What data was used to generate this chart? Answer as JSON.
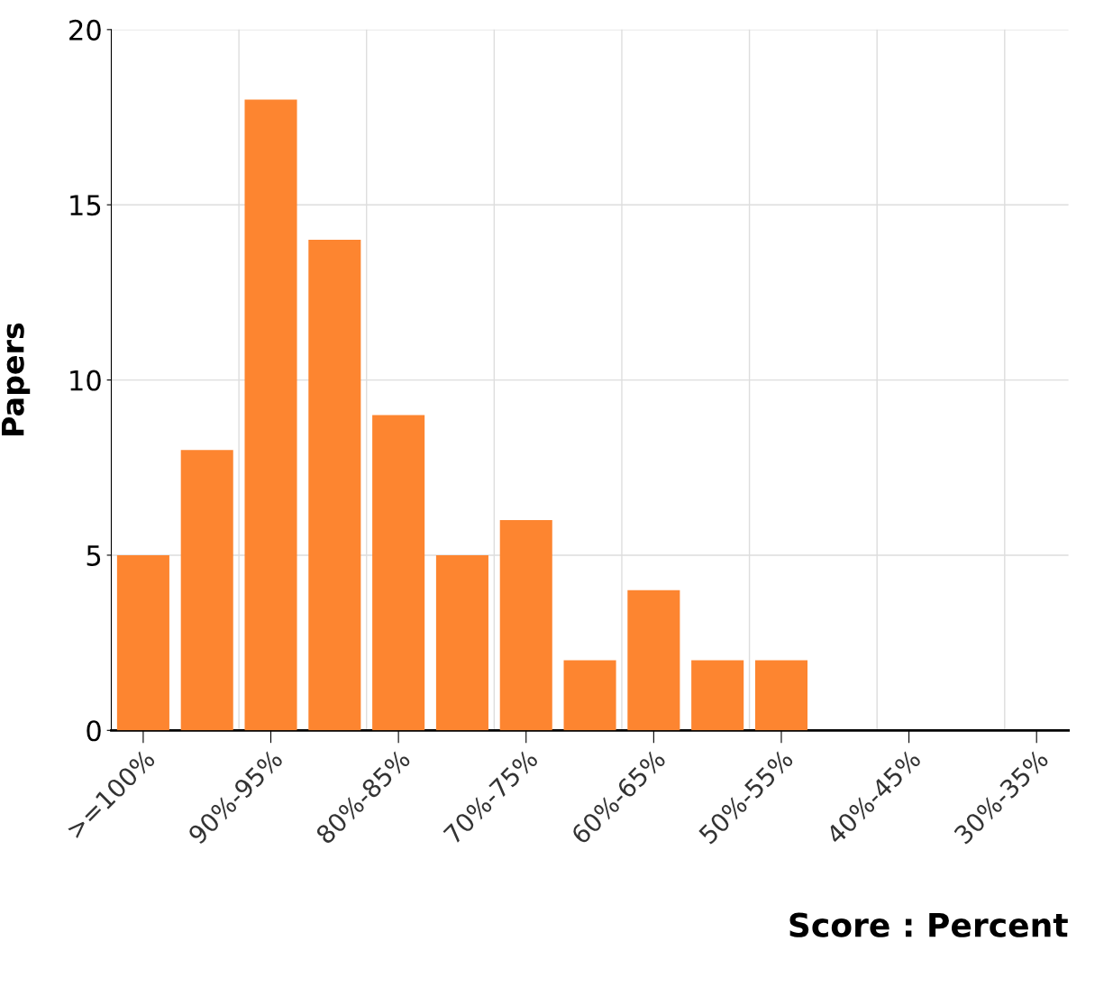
{
  "chart_data": {
    "type": "bar",
    "xlabel": "Score : Percent",
    "ylabel": "Papers",
    "categories": [
      ">=100%",
      null,
      "90%-95%",
      null,
      "80%-85%",
      null,
      "70%-75%",
      null,
      "60%-65%",
      null,
      "50%-55%",
      null,
      "40%-45%",
      null,
      "30%-35%"
    ],
    "values": [
      5,
      8,
      18,
      14,
      9,
      5,
      6,
      2,
      4,
      2,
      2,
      0,
      0,
      0,
      0
    ],
    "color": "#fd8530",
    "ylim": [
      0,
      20
    ],
    "yticks": [
      0,
      5,
      10,
      15,
      20
    ],
    "grid": true
  }
}
